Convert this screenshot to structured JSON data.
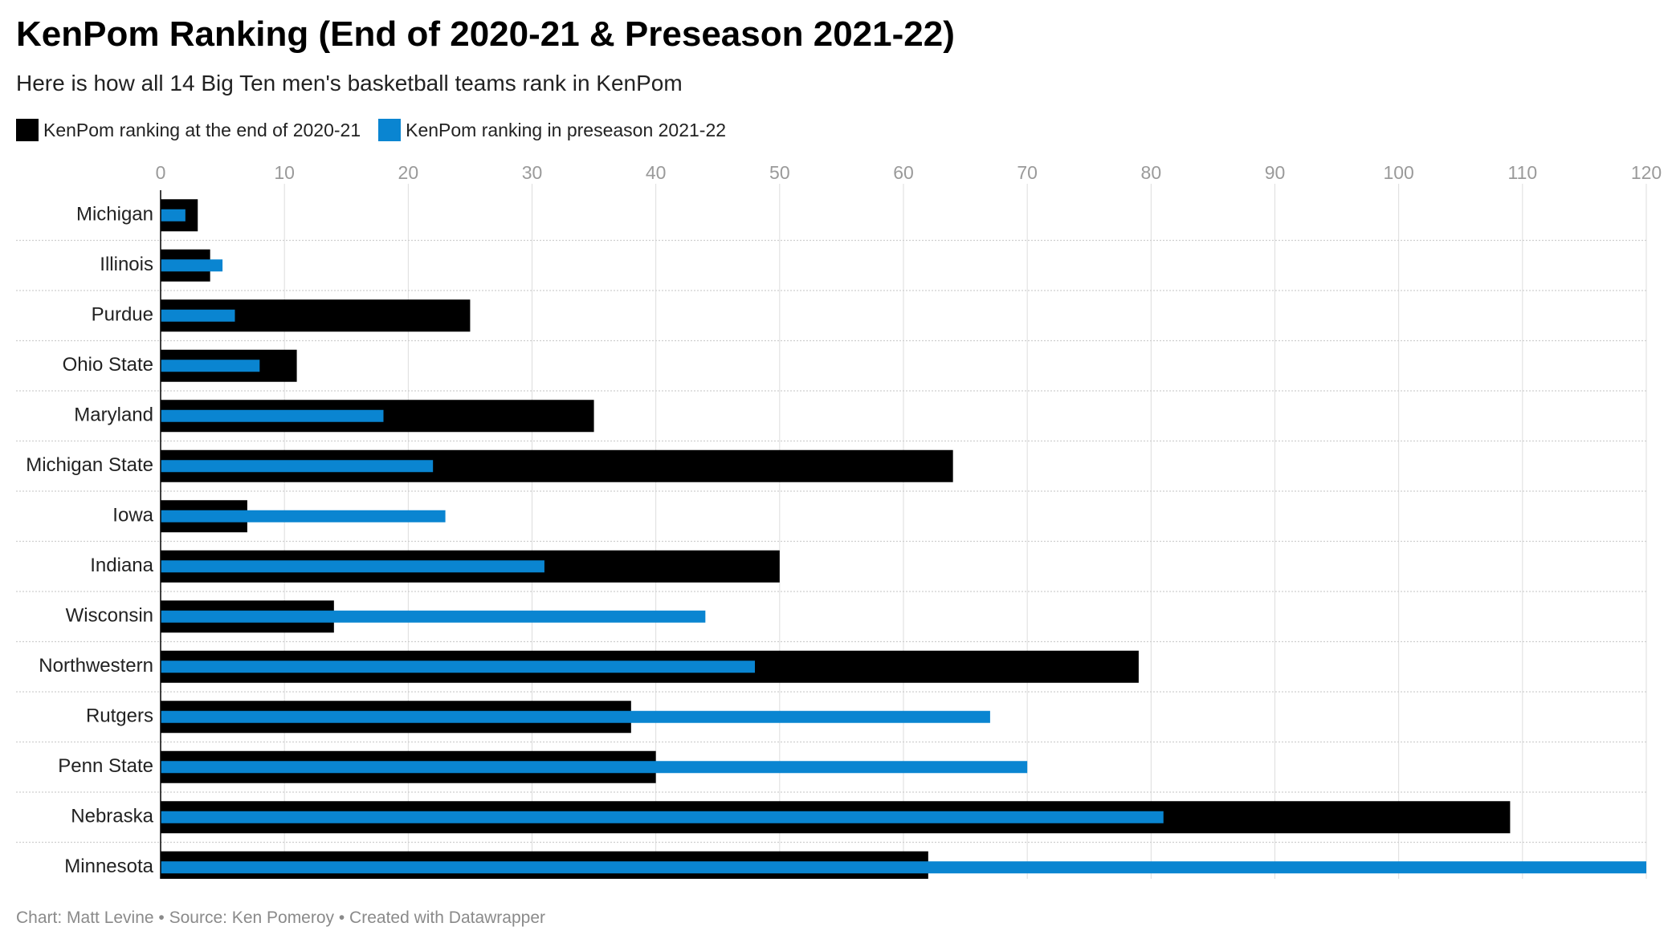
{
  "title": "KenPom Ranking (End of 2020-21 & Preseason 2021-22)",
  "subtitle": "Here is how all 14 Big Ten men's basketball teams rank in KenPom",
  "footer": "Chart: Matt Levine • Source: Ken Pomeroy • Created with Datawrapper",
  "colors": {
    "end": "#000000",
    "pre": "#0a85d1",
    "grid": "#dddddd",
    "tick": "#9a9a9a"
  },
  "chart_data": {
    "type": "bar",
    "orientation": "horizontal",
    "categories": [
      "Michigan",
      "Illinois",
      "Purdue",
      "Ohio State",
      "Maryland",
      "Michigan State",
      "Iowa",
      "Indiana",
      "Wisconsin",
      "Northwestern",
      "Rutgers",
      "Penn State",
      "Nebraska",
      "Minnesota"
    ],
    "series": [
      {
        "name": "KenPom ranking at the end of 2020-21",
        "values": [
          3,
          4,
          25,
          11,
          35,
          64,
          7,
          50,
          14,
          79,
          38,
          40,
          109,
          62
        ]
      },
      {
        "name": "KenPom ranking in preseason 2021-22",
        "values": [
          2,
          5,
          6,
          8,
          18,
          22,
          23,
          31,
          44,
          48,
          67,
          70,
          81,
          120
        ]
      }
    ],
    "xlim": [
      0,
      120
    ],
    "xticks": [
      0,
      10,
      20,
      30,
      40,
      50,
      60,
      70,
      80,
      90,
      100,
      110,
      120
    ],
    "grid": true,
    "legend_position": "top-left"
  }
}
